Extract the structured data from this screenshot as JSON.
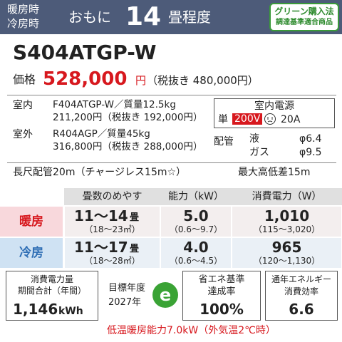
{
  "header": {
    "mode_labels": [
      "暖房時",
      "冷房時"
    ],
    "prefix": "おもに",
    "tatami": "14",
    "suffix": "畳程度",
    "badge": [
      "グリーン購入法",
      "調達基準適合商品"
    ]
  },
  "model": "S404ATGP-W",
  "price": {
    "label": "価格",
    "value": "528,000",
    "unit": "円",
    "tax_excluded": "（税抜き 480,000円）"
  },
  "units": [
    {
      "label": "室内",
      "spec": "F404ATGP-W／質量12.5kg",
      "price": "211,200円（税抜き 192,000円）"
    },
    {
      "label": "室外",
      "spec": "R404AGP／質量45kg",
      "price": "316,800円（税抜き 288,000円）"
    }
  ],
  "power": {
    "title": "室内電源",
    "phase": "単",
    "voltage": "200V",
    "current": "20A"
  },
  "piping": {
    "label": "配管",
    "rows": [
      {
        "name": "液",
        "size": "φ6.4"
      },
      {
        "name": "ガス",
        "size": "φ9.5"
      }
    ]
  },
  "notes": [
    "長尺配管20m（チャージレス15m☆）",
    "最大高低差15m"
  ],
  "table": {
    "header": [
      "畳数のめやす",
      "能力（kW）",
      "消費電力（W）"
    ],
    "rows": [
      {
        "mode": "暖房",
        "cells": [
          {
            "main": "11～14",
            "unit": "畳",
            "range": "（18～23㎡）"
          },
          {
            "main": "5.0",
            "range": "（0.6～9.7）"
          },
          {
            "main": "1,010",
            "range": "（115～3,020）"
          }
        ]
      },
      {
        "mode": "冷房",
        "cells": [
          {
            "main": "11～17",
            "unit": "畳",
            "range": "（18～28㎡）"
          },
          {
            "main": "4.0",
            "range": "（0.6～4.5）"
          },
          {
            "main": "965",
            "range": "（120～1,130）"
          }
        ]
      }
    ]
  },
  "summary": [
    {
      "lines": [
        "消費電力量",
        "期間合計（年間）"
      ],
      "value": "1,146",
      "unit": "kWh"
    },
    {
      "lines": [
        "目標年度",
        "2027年"
      ]
    },
    {
      "lines": [
        "省エネ基準",
        "達成率"
      ],
      "value": "100%"
    },
    {
      "lines": [
        "通年エネルギー",
        "消費効率"
      ],
      "value": "6.6"
    }
  ],
  "footnote": "低温暖房能力7.0kW（外気温2℃時）"
}
